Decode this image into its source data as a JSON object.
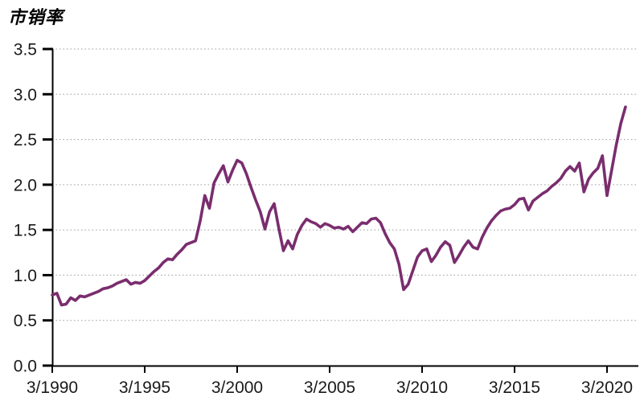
{
  "title": "市销率",
  "chart_data": {
    "type": "line",
    "title": "市销率",
    "series_name": "市销率",
    "legend": "none",
    "grid": "horizontal-dotted",
    "background": "#ffffff",
    "line_color": "#7a2d6e",
    "grid_color": "#999999",
    "axis_color": "#000000",
    "label_color": "#1a1a1a",
    "x_frequency": "quarterly",
    "x_start": "3/1990",
    "x_end": "3/2021",
    "x_tick_labels": [
      "3/1990",
      "3/1995",
      "3/2000",
      "3/2005",
      "3/2010",
      "3/2015",
      "3/2020"
    ],
    "x_ticks_every_n_points": 20,
    "y_tick_labels": [
      "0.0",
      "0.5",
      "1.0",
      "1.5",
      "2.0",
      "2.5",
      "3.0",
      "3.5"
    ],
    "y_ticks": [
      0.0,
      0.5,
      1.0,
      1.5,
      2.0,
      2.5,
      3.0,
      3.5
    ],
    "ylim": [
      0,
      3.5
    ],
    "values": [
      0.78,
      0.8,
      0.67,
      0.68,
      0.75,
      0.72,
      0.77,
      0.76,
      0.78,
      0.8,
      0.82,
      0.85,
      0.86,
      0.88,
      0.91,
      0.93,
      0.95,
      0.9,
      0.92,
      0.91,
      0.94,
      0.99,
      1.04,
      1.08,
      1.14,
      1.18,
      1.17,
      1.23,
      1.28,
      1.34,
      1.36,
      1.38,
      1.6,
      1.88,
      1.74,
      2.02,
      2.12,
      2.21,
      2.03,
      2.16,
      2.27,
      2.24,
      2.12,
      1.97,
      1.83,
      1.7,
      1.51,
      1.7,
      1.79,
      1.52,
      1.27,
      1.38,
      1.29,
      1.45,
      1.55,
      1.62,
      1.59,
      1.57,
      1.53,
      1.57,
      1.55,
      1.52,
      1.53,
      1.51,
      1.54,
      1.48,
      1.53,
      1.58,
      1.57,
      1.62,
      1.63,
      1.58,
      1.46,
      1.36,
      1.29,
      1.12,
      0.84,
      0.9,
      1.05,
      1.2,
      1.27,
      1.29,
      1.15,
      1.22,
      1.31,
      1.37,
      1.33,
      1.14,
      1.22,
      1.31,
      1.38,
      1.31,
      1.29,
      1.42,
      1.52,
      1.6,
      1.66,
      1.71,
      1.73,
      1.74,
      1.78,
      1.84,
      1.85,
      1.72,
      1.82,
      1.86,
      1.9,
      1.93,
      1.98,
      2.02,
      2.07,
      2.15,
      2.2,
      2.15,
      2.24,
      1.92,
      2.06,
      2.13,
      2.18,
      2.32,
      1.88,
      2.16,
      2.44,
      2.68,
      2.86
    ]
  }
}
